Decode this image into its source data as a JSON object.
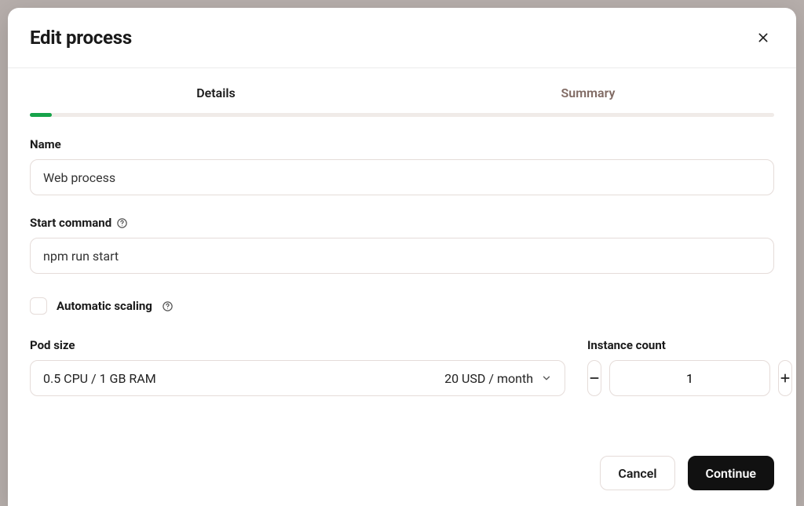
{
  "modal": {
    "title": "Edit process",
    "tabs": {
      "details": "Details",
      "summary": "Summary",
      "active_index": 0
    },
    "progress_percent": 3,
    "progress_color": "#16a34a",
    "progress_track_color": "#f0ebe8"
  },
  "fields": {
    "name": {
      "label": "Name",
      "value": "Web process"
    },
    "start_command": {
      "label": "Start command",
      "value": "npm run start",
      "has_help": true
    },
    "automatic_scaling": {
      "label": "Automatic scaling",
      "checked": false,
      "has_help": true
    },
    "pod_size": {
      "label": "Pod size",
      "selected_spec": "0.5 CPU / 1 GB RAM",
      "selected_price": "20 USD / month"
    },
    "instance_count": {
      "label": "Instance count",
      "value": "1"
    }
  },
  "footer": {
    "cancel": "Cancel",
    "continue": "Continue"
  },
  "colors": {
    "backdrop": "#b6aeab",
    "modal_bg": "#ffffff",
    "border": "#e5dcd9",
    "text": "#1a1a1a",
    "tab_inactive": "#806a63",
    "primary_button_bg": "#111111",
    "primary_button_fg": "#ffffff"
  }
}
